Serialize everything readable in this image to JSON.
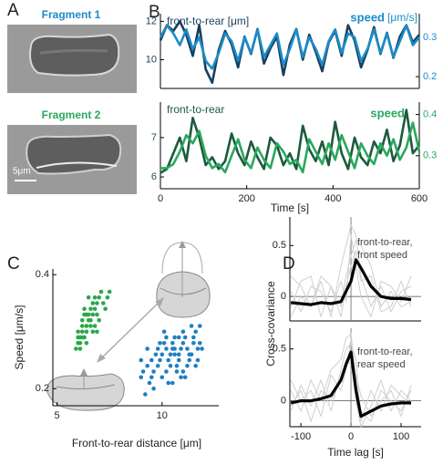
{
  "panel_labels": [
    "A",
    "B",
    "C",
    "D"
  ],
  "fragments": {
    "labels": [
      "Fragment 1",
      "Fragment 2"
    ],
    "scale_bar": "5μm"
  },
  "chart_data": [
    {
      "type": "line",
      "x": [
        0,
        15,
        30,
        45,
        60,
        75,
        90,
        105,
        120,
        135,
        150,
        165,
        180,
        195,
        210,
        225,
        240,
        255,
        270,
        285,
        300,
        315,
        330,
        345,
        360,
        375,
        390,
        405,
        420,
        435,
        450,
        465,
        480,
        495,
        510,
        525,
        540,
        555,
        570,
        585,
        600
      ],
      "xlim": [
        0,
        600
      ],
      "ylim": [
        8.5,
        12.4
      ],
      "yticks": [
        10,
        12
      ],
      "y2lim": [
        0.17,
        0.36
      ],
      "y2ticks": [
        0.2,
        0.3
      ],
      "y2label": "[μm/s]",
      "series": [
        {
          "name": "front-to-rear [μm]",
          "color": "#173f5f",
          "values": [
            11.0,
            11.8,
            11.5,
            12.0,
            11.3,
            10.2,
            11.8,
            9.5,
            8.8,
            10.5,
            11.5,
            10.8,
            9.6,
            11.2,
            10.3,
            11.6,
            9.8,
            10.6,
            11.2,
            9.2,
            10.8,
            11.6,
            10.0,
            11.3,
            10.4,
            9.4,
            10.9,
            11.5,
            10.2,
            11.8,
            11.0,
            9.6,
            10.5,
            11.7,
            10.3,
            11.4,
            10.1,
            11.2,
            11.8,
            10.9,
            11.3
          ]
        },
        {
          "name": "speed",
          "color": "#1b8bc8",
          "axis": "y2",
          "values": [
            0.3,
            0.33,
            0.31,
            0.28,
            0.32,
            0.27,
            0.3,
            0.24,
            0.22,
            0.26,
            0.31,
            0.29,
            0.24,
            0.3,
            0.26,
            0.32,
            0.25,
            0.28,
            0.31,
            0.23,
            0.27,
            0.32,
            0.25,
            0.3,
            0.27,
            0.23,
            0.29,
            0.32,
            0.26,
            0.31,
            0.3,
            0.24,
            0.27,
            0.32,
            0.26,
            0.31,
            0.25,
            0.29,
            0.33,
            0.28,
            0.3
          ]
        }
      ]
    },
    {
      "type": "line",
      "x": [
        0,
        15,
        30,
        45,
        60,
        75,
        90,
        105,
        120,
        135,
        150,
        165,
        180,
        195,
        210,
        225,
        240,
        255,
        270,
        285,
        300,
        315,
        330,
        345,
        360,
        375,
        390,
        405,
        420,
        435,
        450,
        465,
        480,
        495,
        510,
        525,
        540,
        555,
        570,
        585,
        600
      ],
      "xlim": [
        0,
        600
      ],
      "xticks": [
        0,
        200,
        400,
        600
      ],
      "xlabel": "Time [s]",
      "ylim": [
        5.7,
        7.9
      ],
      "yticks": [
        6,
        7
      ],
      "y2lim": [
        0.22,
        0.43
      ],
      "y2ticks": [
        0.3,
        0.4
      ],
      "series": [
        {
          "name": "front-to-rear",
          "color": "#1c5a3c",
          "values": [
            6.1,
            6.2,
            6.6,
            7.0,
            6.4,
            7.5,
            7.0,
            6.3,
            6.5,
            6.2,
            6.4,
            7.1,
            6.6,
            6.3,
            6.9,
            6.5,
            6.2,
            7.0,
            6.8,
            6.3,
            6.6,
            6.2,
            7.3,
            6.7,
            6.4,
            6.9,
            6.3,
            7.4,
            6.6,
            6.2,
            7.0,
            6.5,
            6.3,
            6.9,
            6.6,
            7.2,
            6.4,
            6.8,
            7.7,
            6.6,
            6.8
          ]
        },
        {
          "name": "speed",
          "color": "#2aa85e",
          "axis": "y2",
          "values": [
            0.27,
            0.27,
            0.28,
            0.31,
            0.35,
            0.33,
            0.36,
            0.3,
            0.27,
            0.28,
            0.26,
            0.3,
            0.34,
            0.29,
            0.27,
            0.32,
            0.29,
            0.27,
            0.33,
            0.31,
            0.28,
            0.29,
            0.26,
            0.34,
            0.31,
            0.28,
            0.33,
            0.29,
            0.35,
            0.31,
            0.27,
            0.33,
            0.3,
            0.28,
            0.33,
            0.3,
            0.34,
            0.29,
            0.32,
            0.38,
            0.31
          ]
        }
      ]
    },
    {
      "type": "scatter",
      "xlim": [
        4.8,
        12.7
      ],
      "xticks": [
        5,
        10
      ],
      "xlabel": "Front-to-rear distance [μm]",
      "ylim": [
        0.17,
        0.41
      ],
      "yticks": [
        0.2,
        0.4
      ],
      "ylabel": "Speed  [μm/s]",
      "series": [
        {
          "color": "#2aa84a",
          "x": [
            6.0,
            6.2,
            6.4,
            6.1,
            6.5,
            6.8,
            6.3,
            7.0,
            6.6,
            5.9,
            6.2,
            6.9,
            7.2,
            6.4,
            6.7,
            6.1,
            6.5,
            7.4,
            6.3,
            6.8,
            6.0,
            6.6,
            7.1,
            6.4,
            6.9,
            6.2,
            6.7,
            7.3,
            6.5,
            6.0,
            6.3,
            7.0,
            6.6,
            6.1,
            6.8,
            7.5,
            6.4,
            6.2,
            6.9,
            6.7
          ],
          "values": [
            0.28,
            0.3,
            0.31,
            0.27,
            0.33,
            0.34,
            0.29,
            0.36,
            0.32,
            0.27,
            0.31,
            0.33,
            0.35,
            0.3,
            0.35,
            0.29,
            0.32,
            0.36,
            0.33,
            0.31,
            0.3,
            0.34,
            0.37,
            0.28,
            0.35,
            0.32,
            0.3,
            0.34,
            0.36,
            0.29,
            0.34,
            0.32,
            0.31,
            0.28,
            0.36,
            0.37,
            0.33,
            0.29,
            0.3,
            0.33
          ]
        },
        {
          "color": "#1f7fc0",
          "x": [
            9.0,
            9.5,
            10.2,
            10.8,
            11.3,
            9.8,
            10.5,
            11.0,
            11.6,
            9.3,
            10.0,
            10.7,
            11.2,
            11.8,
            9.6,
            10.3,
            10.9,
            11.4,
            9.1,
            9.9,
            10.6,
            11.1,
            11.7,
            10.1,
            10.4,
            10.8,
            11.5,
            9.4,
            9.7,
            10.2,
            11.0,
            11.9,
            10.5,
            9.2,
            10.9,
            11.3,
            9.8,
            10.6,
            11.6,
            10.0,
            10.4,
            11.2,
            9.5,
            10.7,
            11.8,
            9.0,
            10.1,
            11.4,
            10.3,
            9.6,
            10.8,
            11.1,
            9.9,
            10.5,
            11.7,
            9.3,
            10.2,
            11.0,
            10.6,
            11.5
          ],
          "values": [
            0.25,
            0.22,
            0.27,
            0.29,
            0.26,
            0.24,
            0.21,
            0.28,
            0.3,
            0.27,
            0.26,
            0.23,
            0.24,
            0.28,
            0.2,
            0.25,
            0.27,
            0.31,
            0.23,
            0.28,
            0.26,
            0.22,
            0.27,
            0.3,
            0.24,
            0.25,
            0.29,
            0.21,
            0.26,
            0.23,
            0.3,
            0.27,
            0.28,
            0.19,
            0.22,
            0.25,
            0.27,
            0.29,
            0.24,
            0.22,
            0.26,
            0.27,
            0.25,
            0.24,
            0.31,
            0.22,
            0.28,
            0.26,
            0.21,
            0.23,
            0.26,
            0.29,
            0.25,
            0.27,
            0.25,
            0.24,
            0.29,
            0.23,
            0.27,
            0.28
          ]
        }
      ]
    },
    {
      "type": "line",
      "x": [
        -120,
        -100,
        -80,
        -60,
        -40,
        -20,
        -10,
        0,
        10,
        20,
        40,
        60,
        80,
        100,
        120
      ],
      "xlim": [
        -122,
        140
      ],
      "ylim": [
        -0.24,
        0.78
      ],
      "yticks": [
        0,
        0.5
      ],
      "ylabel": "Cross-covariance",
      "annotation": [
        "front-to-rear,",
        "front speed"
      ],
      "series": [
        {
          "color": "#cfcfcf",
          "values": [
            0.2,
            0.1,
            -0.1,
            0.15,
            -0.2,
            0.3,
            0.5,
            0.7,
            0.6,
            0.2,
            -0.1,
            0.1,
            -0.15,
            0.05,
            0.1
          ]
        },
        {
          "color": "#cfcfcf",
          "values": [
            -0.1,
            0.15,
            0.2,
            -0.2,
            0.1,
            -0.1,
            0.2,
            0.4,
            0.55,
            0.5,
            0.3,
            -0.1,
            0.05,
            -0.1,
            -0.05
          ]
        },
        {
          "color": "#cfcfcf",
          "values": [
            0.05,
            -0.15,
            0.1,
            0.05,
            -0.15,
            0.15,
            -0.05,
            0.6,
            0.3,
            0.0,
            -0.2,
            0.15,
            0.1,
            -0.05,
            0.2
          ]
        },
        {
          "color": "#cfcfcf",
          "values": [
            -0.2,
            0.0,
            -0.1,
            0.2,
            0.1,
            -0.2,
            0.1,
            0.3,
            0.45,
            0.15,
            0.2,
            -0.15,
            -0.1,
            0.15,
            -0.1
          ]
        },
        {
          "color": "#000000",
          "values": [
            -0.06,
            -0.07,
            -0.08,
            -0.06,
            -0.07,
            -0.05,
            0.05,
            0.15,
            0.36,
            0.28,
            0.1,
            0.0,
            -0.02,
            -0.02,
            -0.03
          ]
        }
      ]
    },
    {
      "type": "line",
      "x": [
        -120,
        -100,
        -80,
        -60,
        -40,
        -20,
        -10,
        0,
        10,
        20,
        40,
        60,
        80,
        100,
        120
      ],
      "xlim": [
        -122,
        140
      ],
      "xticks": [
        -100,
        0,
        100
      ],
      "xlabel": "Time lag [s]",
      "ylim": [
        -0.25,
        0.7
      ],
      "yticks": [
        0,
        0.5
      ],
      "annotation": [
        "front-to-rear,",
        "rear speed"
      ],
      "series": [
        {
          "color": "#cfcfcf",
          "values": [
            0.1,
            -0.1,
            0.2,
            0.0,
            0.3,
            0.4,
            0.6,
            0.65,
            0.2,
            -0.1,
            -0.2,
            0.1,
            0.0,
            -0.1,
            0.1
          ]
        },
        {
          "color": "#cfcfcf",
          "values": [
            -0.1,
            0.15,
            -0.05,
            0.2,
            -0.1,
            0.3,
            0.5,
            0.55,
            0.4,
            -0.2,
            0.1,
            -0.1,
            0.15,
            0.05,
            -0.05
          ]
        },
        {
          "color": "#cfcfcf",
          "values": [
            0.2,
            0.0,
            0.1,
            -0.15,
            0.25,
            0.1,
            0.3,
            0.6,
            0.0,
            -0.25,
            -0.05,
            0.2,
            -0.1,
            0.1,
            0.0
          ]
        },
        {
          "color": "#cfcfcf",
          "values": [
            -0.05,
            0.1,
            -0.2,
            0.1,
            0.0,
            0.2,
            0.4,
            0.35,
            0.25,
            0.05,
            -0.15,
            0.0,
            0.1,
            -0.15,
            0.15
          ]
        },
        {
          "color": "#000000",
          "values": [
            -0.02,
            0.0,
            0.0,
            0.02,
            0.05,
            0.2,
            0.35,
            0.47,
            0.1,
            -0.15,
            -0.1,
            -0.05,
            -0.03,
            -0.02,
            -0.02
          ]
        }
      ]
    }
  ]
}
